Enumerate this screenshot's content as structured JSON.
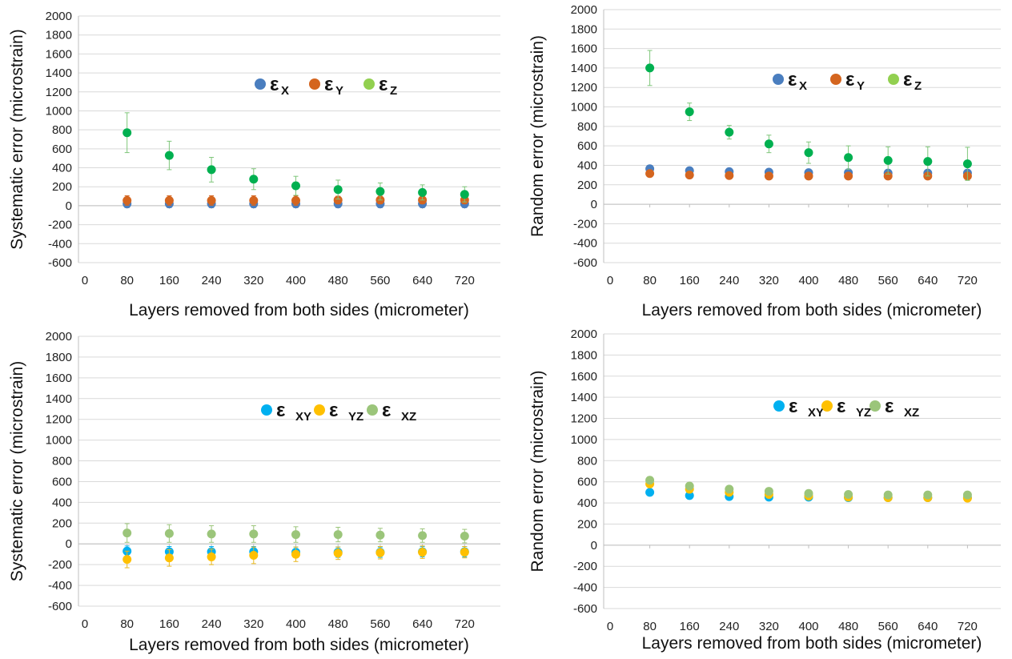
{
  "colors": {
    "x": "#4a7ebf",
    "y": "#d4651f",
    "z": "#00b050",
    "z_legend": "#92d050",
    "xy": "#00b0f0",
    "yz": "#ffc000",
    "xz": "#9bc57a",
    "errbar_green": "#7fc67a",
    "errbar_yellow": "#e8b820",
    "grid": "#d9d9d9",
    "axis": "#bfbfbf"
  },
  "chart_data": [
    {
      "type": "scatter",
      "ylabel": "Systematic error (microstrain)",
      "xlabel": "Layers removed from both sides (micrometer)",
      "ylim": [
        -600,
        2000
      ],
      "ytick_step": 200,
      "xlim": [
        0,
        720
      ],
      "xticks": [
        "0",
        "80",
        "160",
        "240",
        "320",
        "400",
        "480",
        "560",
        "640",
        "720"
      ],
      "legend_position": "top-center",
      "legend": [
        {
          "sym": "ε",
          "sub": "X",
          "color_key": "x"
        },
        {
          "sym": "ε",
          "sub": "Y",
          "color_key": "y"
        },
        {
          "sym": "ε",
          "sub": "Z",
          "color_key": "z_legend"
        }
      ],
      "series": [
        {
          "color_key": "x",
          "bar_key": "x",
          "x": [
            80,
            160,
            240,
            320,
            400,
            480,
            560,
            640,
            720
          ],
          "values": [
            20,
            20,
            20,
            20,
            20,
            20,
            20,
            20,
            20
          ],
          "err": [
            40,
            40,
            40,
            40,
            40,
            40,
            40,
            40,
            40
          ]
        },
        {
          "color_key": "y",
          "bar_key": "y",
          "x": [
            80,
            160,
            240,
            320,
            400,
            480,
            560,
            640,
            720
          ],
          "values": [
            55,
            55,
            55,
            55,
            55,
            60,
            60,
            60,
            60
          ],
          "err": [
            50,
            50,
            50,
            50,
            50,
            40,
            40,
            40,
            40
          ]
        },
        {
          "color_key": "z",
          "bar_key": "errbar_green",
          "x": [
            80,
            160,
            240,
            320,
            400,
            480,
            560,
            640,
            720
          ],
          "values": [
            770,
            530,
            380,
            280,
            210,
            170,
            150,
            140,
            120
          ],
          "err": [
            210,
            150,
            130,
            110,
            100,
            100,
            90,
            80,
            80
          ]
        }
      ]
    },
    {
      "type": "scatter",
      "ylabel": "Random error (microstrain)",
      "xlabel": "Layers removed from both sides (micrometer)",
      "ylim": [
        -600,
        2000
      ],
      "ytick_step": 200,
      "xlim": [
        0,
        720
      ],
      "xticks": [
        "0",
        "80",
        "160",
        "240",
        "320",
        "400",
        "480",
        "560",
        "640",
        "720"
      ],
      "legend_position": "top-center",
      "legend": [
        {
          "sym": "ε",
          "sub": "X",
          "color_key": "x"
        },
        {
          "sym": "ε",
          "sub": "Y",
          "color_key": "y"
        },
        {
          "sym": "ε",
          "sub": "Z",
          "color_key": "z_legend"
        }
      ],
      "series": [
        {
          "color_key": "x",
          "bar_key": "x",
          "x": [
            80,
            160,
            240,
            320,
            400,
            480,
            560,
            640,
            720
          ],
          "values": [
            365,
            345,
            335,
            330,
            325,
            325,
            320,
            320,
            320
          ],
          "err": [
            20,
            20,
            20,
            20,
            20,
            20,
            20,
            20,
            20
          ]
        },
        {
          "color_key": "y",
          "bar_key": "y",
          "x": [
            80,
            160,
            240,
            320,
            400,
            480,
            560,
            640,
            720
          ],
          "values": [
            315,
            300,
            295,
            290,
            290,
            290,
            290,
            290,
            290
          ],
          "err": [
            15,
            15,
            15,
            15,
            15,
            15,
            15,
            15,
            15
          ]
        },
        {
          "color_key": "z",
          "bar_key": "errbar_green",
          "x": [
            80,
            160,
            240,
            320,
            400,
            480,
            560,
            640,
            720
          ],
          "values": [
            1400,
            950,
            740,
            620,
            530,
            480,
            450,
            440,
            415
          ],
          "err": [
            180,
            90,
            70,
            90,
            110,
            120,
            140,
            150,
            170
          ]
        }
      ]
    },
    {
      "type": "scatter",
      "ylabel": "Systematic error (microstrain)",
      "xlabel": "Layers removed from both sides (micrometer)",
      "ylim": [
        -600,
        2000
      ],
      "ytick_step": 200,
      "xlim": [
        0,
        720
      ],
      "xticks": [
        "0",
        "80",
        "160",
        "240",
        "320",
        "400",
        "480",
        "560",
        "640",
        "720"
      ],
      "legend_position": "upper-center",
      "legend": [
        {
          "sym": "ε",
          "sub": "XY",
          "color_key": "xy"
        },
        {
          "sym": "ε",
          "sub": "YZ",
          "color_key": "yz"
        },
        {
          "sym": "ε",
          "sub": "XZ",
          "color_key": "xz"
        }
      ],
      "series": [
        {
          "color_key": "xy",
          "bar_key": "xy",
          "x": [
            80,
            160,
            240,
            320,
            400,
            480,
            560,
            640,
            720
          ],
          "values": [
            -70,
            -75,
            -75,
            -75,
            -80,
            -80,
            -80,
            -75,
            -75
          ],
          "err": [
            50,
            50,
            50,
            50,
            50,
            50,
            50,
            50,
            50
          ]
        },
        {
          "color_key": "yz",
          "bar_key": "errbar_yellow",
          "x": [
            80,
            160,
            240,
            320,
            400,
            480,
            560,
            640,
            720
          ],
          "values": [
            -150,
            -135,
            -125,
            -110,
            -100,
            -90,
            -85,
            -80,
            -80
          ],
          "err": [
            80,
            80,
            75,
            80,
            70,
            60,
            60,
            60,
            55
          ]
        },
        {
          "color_key": "xz",
          "bar_key": "xz",
          "x": [
            80,
            160,
            240,
            320,
            400,
            480,
            560,
            640,
            720
          ],
          "values": [
            105,
            100,
            95,
            95,
            90,
            90,
            85,
            80,
            75
          ],
          "err": [
            90,
            85,
            80,
            80,
            75,
            70,
            65,
            65,
            65
          ]
        }
      ]
    },
    {
      "type": "scatter",
      "ylabel": "Random error (microstrain)",
      "xlabel": "Layers removed from both sides (micrometer)",
      "ylim": [
        -600,
        2000
      ],
      "ytick_step": 200,
      "xlim": [
        0,
        720
      ],
      "xticks": [
        "0",
        "80",
        "160",
        "240",
        "320",
        "400",
        "480",
        "560",
        "640",
        "720"
      ],
      "legend_position": "upper-center",
      "legend": [
        {
          "sym": "ε",
          "sub": "XY",
          "color_key": "xy"
        },
        {
          "sym": "ε",
          "sub": "YZ",
          "color_key": "yz"
        },
        {
          "sym": "ε",
          "sub": "XZ",
          "color_key": "xz"
        }
      ],
      "series": [
        {
          "color_key": "xy",
          "bar_key": "xy",
          "x": [
            80,
            160,
            240,
            320,
            400,
            480,
            560,
            640,
            720
          ],
          "values": [
            500,
            470,
            460,
            455,
            455,
            450,
            450,
            450,
            450
          ],
          "err": [
            10,
            10,
            10,
            10,
            10,
            10,
            10,
            10,
            10
          ]
        },
        {
          "color_key": "yz",
          "bar_key": "errbar_yellow",
          "x": [
            80,
            160,
            240,
            320,
            400,
            480,
            560,
            640,
            720
          ],
          "values": [
            580,
            530,
            500,
            480,
            465,
            455,
            450,
            450,
            445
          ],
          "err": [
            25,
            20,
            20,
            15,
            15,
            15,
            15,
            15,
            15
          ]
        },
        {
          "color_key": "xz",
          "bar_key": "xz",
          "x": [
            80,
            160,
            240,
            320,
            400,
            480,
            560,
            640,
            720
          ],
          "values": [
            615,
            560,
            530,
            510,
            490,
            480,
            475,
            475,
            475
          ],
          "err": [
            30,
            25,
            20,
            20,
            20,
            20,
            20,
            20,
            20
          ]
        }
      ]
    }
  ]
}
